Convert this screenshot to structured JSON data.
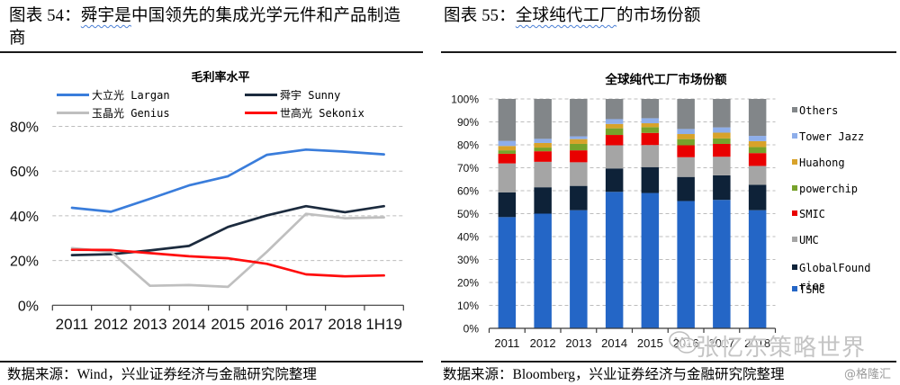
{
  "figures": [
    {
      "caption_prefix": "图表 54：",
      "caption_marked": "舜宇是",
      "caption_rest": "中国领先的集成光学元件和产品制造商",
      "source": "数据来源：Wind，兴业证券经济与金融研究院整理"
    },
    {
      "caption_prefix": "图表 55：",
      "caption_marked": "全球纯代工厂",
      "caption_rest": "的市场份额",
      "source": "数据来源：Bloomberg，兴业证券经济与金融研究院整理"
    }
  ],
  "watermark": {
    "text": "张忆东策略世界",
    "icon": "wechat-icon",
    "credit": "@格隆汇"
  },
  "chart_data": [
    {
      "type": "line",
      "title": "毛利率水平",
      "xlabel": "",
      "ylabel": "",
      "categories": [
        "2011",
        "2012",
        "2013",
        "2014",
        "2015",
        "2016",
        "2017",
        "2018",
        "1H19"
      ],
      "ylim": [
        0,
        80
      ],
      "yticks": [
        0,
        20,
        40,
        60,
        80
      ],
      "ytick_labels": [
        "0%",
        "20%",
        "40%",
        "60%",
        "80%"
      ],
      "grid": true,
      "legend_position": "top",
      "series": [
        {
          "name": "大立光 Largan",
          "color": "#3a7ddb",
          "values": [
            43.6,
            41.8,
            47.6,
            53.6,
            57.7,
            67.3,
            69.6,
            68.7,
            67.5
          ]
        },
        {
          "name": "舜宇 Sunny",
          "color": "#1c2b3e",
          "values": [
            22.4,
            22.8,
            24.5,
            26.5,
            35.0,
            40.2,
            44.3,
            41.6,
            44.3
          ]
        },
        {
          "name": "玉晶光 Genius",
          "color": "#bfbfbf",
          "values": [
            25.5,
            23.9,
            8.7,
            9.0,
            8.2,
            23.9,
            40.9,
            38.9,
            39.3
          ]
        },
        {
          "name": "世高光 Sekonix",
          "color": "#ff0d0d",
          "values": [
            24.8,
            24.7,
            23.3,
            21.9,
            21.0,
            18.5,
            13.8,
            12.9,
            13.3
          ]
        }
      ]
    },
    {
      "type": "bar",
      "stacked": true,
      "title": "全球纯代工厂市场份额",
      "xlabel": "",
      "ylabel": "",
      "categories": [
        "2011",
        "2012",
        "2013",
        "2014",
        "2015",
        "2016",
        "2017",
        "2018"
      ],
      "ylim": [
        0,
        100
      ],
      "yticks": [
        0,
        10,
        20,
        30,
        40,
        50,
        60,
        70,
        80,
        90,
        100
      ],
      "ytick_labels": [
        "0%",
        "10%",
        "20%",
        "30%",
        "40%",
        "50%",
        "60%",
        "70%",
        "80%",
        "90%",
        "100%"
      ],
      "grid": true,
      "legend_position": "right",
      "series": [
        {
          "name": "TSMC",
          "color": "#2466c6",
          "values": [
            48.5,
            50.0,
            51.5,
            59.5,
            59.0,
            55.5,
            56.0,
            51.5
          ]
        },
        {
          "name": "GlobalFoundries",
          "color": "#0e2238",
          "values": [
            10.8,
            11.5,
            10.6,
            10.2,
            11.3,
            10.5,
            10.7,
            11.1
          ]
        },
        {
          "name": "UMC",
          "color": "#a5a5a5",
          "values": [
            12.6,
            11.1,
            10.3,
            10.1,
            9.6,
            8.6,
            8.1,
            8.2
          ]
        },
        {
          "name": "SMIC",
          "color": "#e90000",
          "values": [
            4.2,
            4.6,
            5.2,
            4.5,
            5.3,
            5.2,
            5.6,
            5.6
          ]
        },
        {
          "name": "powerchip",
          "color": "#77a22b",
          "values": [
            1.5,
            1.6,
            2.8,
            2.9,
            2.5,
            2.7,
            2.4,
            2.6
          ]
        },
        {
          "name": "Huahong",
          "color": "#d8a22a",
          "values": [
            1.9,
            2.0,
            2.1,
            1.9,
            1.7,
            2.2,
            2.5,
            2.6
          ]
        },
        {
          "name": "Tower Jazz",
          "color": "#8eaeea",
          "values": [
            2.2,
            1.8,
            1.2,
            2.1,
            2.2,
            2.2,
            2.3,
            2.3
          ]
        },
        {
          "name": "Others",
          "color": "#828689",
          "values": [
            18.3,
            17.4,
            16.3,
            8.8,
            8.4,
            13.1,
            12.4,
            16.1
          ]
        }
      ]
    }
  ]
}
